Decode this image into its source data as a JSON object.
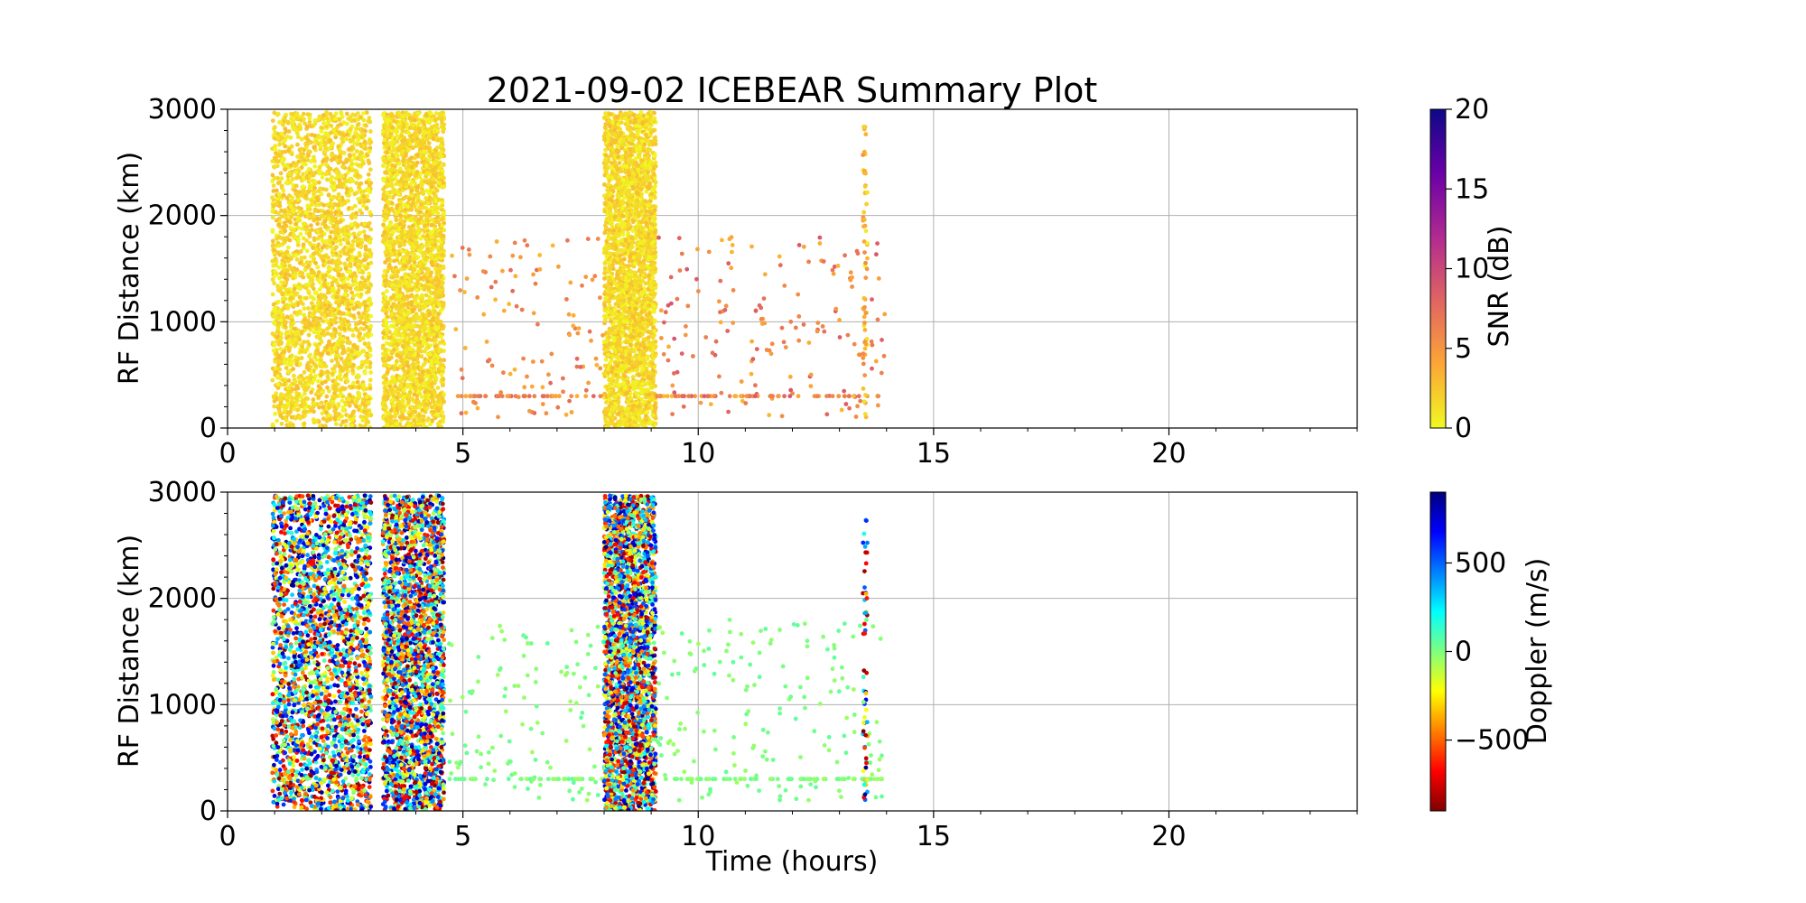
{
  "figure": {
    "title": "2021-09-02 ICEBEAR Summary Plot"
  },
  "chart_data": [
    {
      "type": "scatter",
      "panel": "top",
      "title": "2021-09-02 ICEBEAR Summary Plot",
      "xlabel": "",
      "ylabel": "RF Distance (km)",
      "xlim": [
        0,
        24
      ],
      "ylim": [
        0,
        3000
      ],
      "xticks": [
        0,
        5,
        10,
        15,
        20
      ],
      "yticks": [
        0,
        1000,
        2000,
        3000
      ],
      "grid": true,
      "color_by": "snr_db",
      "colorbar": {
        "label": "SNR (dB)",
        "colormap": "plasma_r",
        "range": [
          0,
          20
        ],
        "ticks": [
          0,
          5,
          10,
          15,
          20
        ],
        "stops": [
          "#f0f921",
          "#fca636",
          "#e16462",
          "#b12a90",
          "#6a00a8",
          "#0d0887"
        ]
      },
      "series": [
        {
          "time_range_h": [
            0.95,
            3.05
          ],
          "density": "saturated",
          "rf_distance_km": [
            0,
            2970
          ],
          "snr_db": [
            0,
            3
          ]
        },
        {
          "time_range_h": [
            3.3,
            4.6
          ],
          "density": "high",
          "rf_distance_km": [
            0,
            2970
          ],
          "snr_db": [
            0,
            3
          ]
        },
        {
          "time_range_h": [
            4.7,
            8.0
          ],
          "density": "sparse",
          "rf_distance_km": [
            100,
            1800
          ],
          "snr_db": [
            3,
            8
          ],
          "baseline_km": 300
        },
        {
          "time_range_h": [
            8.0,
            9.1
          ],
          "density": "high",
          "rf_distance_km": [
            0,
            2970
          ],
          "snr_db": [
            0,
            3
          ]
        },
        {
          "time_range_h": [
            9.1,
            14.0
          ],
          "density": "sparse",
          "rf_distance_km": [
            100,
            1800
          ],
          "snr_db": [
            3,
            9
          ],
          "baseline_km": 300
        },
        {
          "time_range_h": [
            13.5,
            13.6
          ],
          "density": "column",
          "rf_distance_km": [
            100,
            2850
          ],
          "snr_db": [
            0,
            6
          ]
        }
      ]
    },
    {
      "type": "scatter",
      "panel": "bottom",
      "title": "",
      "xlabel": "Time (hours)",
      "ylabel": "RF Distance (km)",
      "xlim": [
        0,
        24
      ],
      "ylim": [
        0,
        3000
      ],
      "xticks": [
        0,
        5,
        10,
        15,
        20
      ],
      "yticks": [
        0,
        1000,
        2000,
        3000
      ],
      "grid": true,
      "color_by": "doppler_m_s",
      "colorbar": {
        "label": "Doppler (m/s)",
        "colormap": "jet_r",
        "range": [
          -900,
          900
        ],
        "ticks": [
          -500,
          0,
          500
        ],
        "tick_labels": [
          "−500",
          "0",
          "500"
        ],
        "stops": [
          "#7f0000",
          "#ff0000",
          "#ff7f00",
          "#ffff00",
          "#7fff7f",
          "#00ffff",
          "#007fff",
          "#0000ff",
          "#00007f"
        ]
      },
      "series": [
        {
          "time_range_h": [
            0.95,
            3.05
          ],
          "density": "saturated",
          "rf_distance_km": [
            0,
            2970
          ],
          "doppler_m_s": [
            -900,
            900
          ]
        },
        {
          "time_range_h": [
            3.3,
            4.6
          ],
          "density": "high",
          "rf_distance_km": [
            0,
            2970
          ],
          "doppler_m_s": [
            -900,
            900
          ]
        },
        {
          "time_range_h": [
            4.7,
            8.0
          ],
          "density": "sparse",
          "rf_distance_km": [
            100,
            1800
          ],
          "doppler_m_s": [
            -60,
            60
          ],
          "baseline_km": 300
        },
        {
          "time_range_h": [
            8.0,
            9.1
          ],
          "density": "high",
          "rf_distance_km": [
            0,
            2970
          ],
          "doppler_m_s": [
            -900,
            900
          ]
        },
        {
          "time_range_h": [
            9.1,
            14.0
          ],
          "density": "sparse",
          "rf_distance_km": [
            100,
            1800
          ],
          "doppler_m_s": [
            -60,
            60
          ],
          "baseline_km": 300
        },
        {
          "time_range_h": [
            13.5,
            13.6
          ],
          "density": "column",
          "rf_distance_km": [
            100,
            2850
          ],
          "doppler_m_s": [
            -900,
            900
          ]
        }
      ]
    }
  ]
}
